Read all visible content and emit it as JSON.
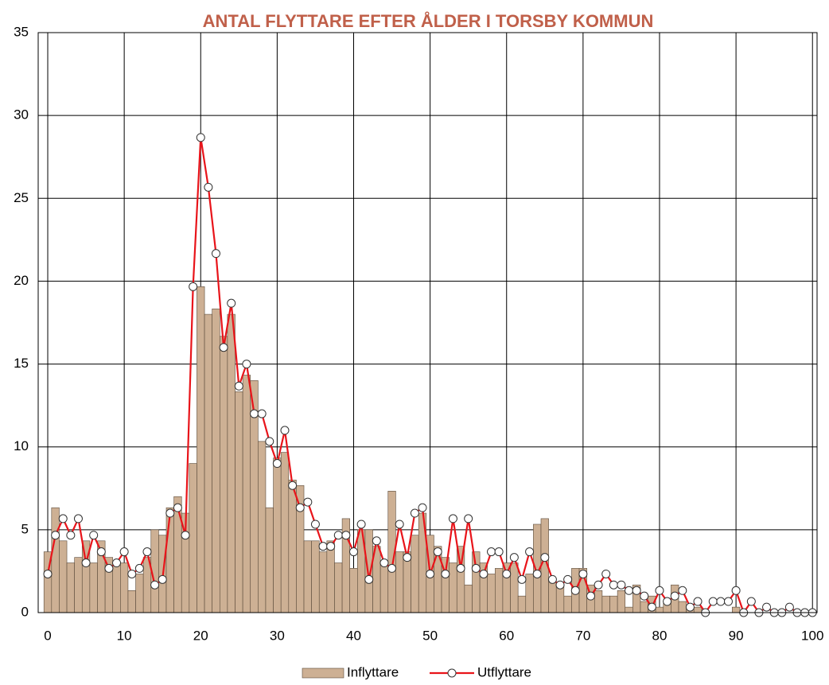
{
  "chart_data": {
    "type": "bar_line",
    "title": "ANTAL FLYTTARE EFTER ÅLDER I TORSBY KOMMUN",
    "x": [
      0,
      1,
      2,
      3,
      4,
      5,
      6,
      7,
      8,
      9,
      10,
      11,
      12,
      13,
      14,
      15,
      16,
      17,
      18,
      19,
      20,
      21,
      22,
      23,
      24,
      25,
      26,
      27,
      28,
      29,
      30,
      31,
      32,
      33,
      34,
      35,
      36,
      37,
      38,
      39,
      40,
      41,
      42,
      43,
      44,
      45,
      46,
      47,
      48,
      49,
      50,
      51,
      52,
      53,
      54,
      55,
      56,
      57,
      58,
      59,
      60,
      61,
      62,
      63,
      64,
      65,
      66,
      67,
      68,
      69,
      70,
      71,
      72,
      73,
      74,
      75,
      76,
      77,
      78,
      79,
      80,
      81,
      82,
      83,
      84,
      85,
      86,
      87,
      88,
      89,
      90,
      91,
      92,
      93,
      94,
      95,
      96,
      97,
      98,
      99,
      100
    ],
    "series": [
      {
        "name": "Inflyttare",
        "color": "#cdb094",
        "values": [
          3.67,
          6.33,
          4.33,
          3,
          3.33,
          4.33,
          3,
          4.33,
          3.33,
          3,
          3,
          1.33,
          2.33,
          3.33,
          5,
          4.67,
          6.33,
          7,
          6,
          9,
          19.67,
          18,
          18.33,
          16.67,
          18,
          13.33,
          14.33,
          14,
          10.33,
          6.33,
          9.33,
          9.67,
          8,
          7.67,
          4.33,
          4.33,
          3.67,
          4.33,
          3,
          5.67,
          2.67,
          5,
          5,
          4,
          3,
          7.33,
          3.67,
          3.67,
          4.67,
          6,
          4.67,
          4,
          3.33,
          3,
          4,
          1.67,
          3.67,
          3,
          2.33,
          2.67,
          3,
          3,
          1,
          2.33,
          5.33,
          5.67,
          2,
          1.67,
          1,
          2.67,
          2.67,
          1.67,
          1.33,
          1,
          1,
          1.33,
          0.33,
          1.67,
          0.67,
          1,
          0.33,
          0.67,
          1.67,
          0.67,
          0.33,
          0.33,
          0,
          0,
          0,
          0,
          0.33,
          0,
          0,
          0,
          0,
          0,
          0,
          0,
          0,
          0,
          0
        ]
      },
      {
        "name": "Utflyttare",
        "color": "#e8141a",
        "values": [
          2.33,
          4.67,
          5.67,
          4.67,
          5.67,
          3,
          4.67,
          3.67,
          2.67,
          3,
          3.67,
          2.33,
          2.67,
          3.67,
          1.67,
          2,
          6,
          6.33,
          4.67,
          19.67,
          28.67,
          25.67,
          21.67,
          16,
          18.67,
          13.67,
          15,
          12,
          12,
          10.33,
          9,
          11,
          7.67,
          6.33,
          6.67,
          5.33,
          4,
          4,
          4.67,
          4.67,
          3.67,
          5.33,
          2,
          4.33,
          3,
          2.67,
          5.33,
          3.33,
          6,
          6.33,
          2.33,
          3.67,
          2.33,
          5.67,
          2.67,
          5.67,
          2.67,
          2.33,
          3.67,
          3.67,
          2.33,
          3.33,
          2,
          3.67,
          2.33,
          3.33,
          2,
          1.67,
          2,
          1.33,
          2.33,
          1,
          1.67,
          2.33,
          1.67,
          1.67,
          1.33,
          1.33,
          1,
          0.33,
          1.33,
          0.67,
          1,
          1.33,
          0.33,
          0.67,
          0,
          0.67,
          0.67,
          0.67,
          1.33,
          0,
          0.67,
          0,
          0.33,
          0,
          0,
          0.33,
          0,
          0,
          0
        ]
      }
    ],
    "xlim": [
      -1.25,
      100.6
    ],
    "xticks": [
      0,
      10,
      20,
      30,
      40,
      50,
      60,
      70,
      80,
      90,
      100
    ],
    "ylim": [
      0,
      35
    ],
    "yticks": [
      0,
      5,
      10,
      15,
      20,
      25,
      30,
      35
    ],
    "grid": true,
    "legend": "bottom"
  }
}
